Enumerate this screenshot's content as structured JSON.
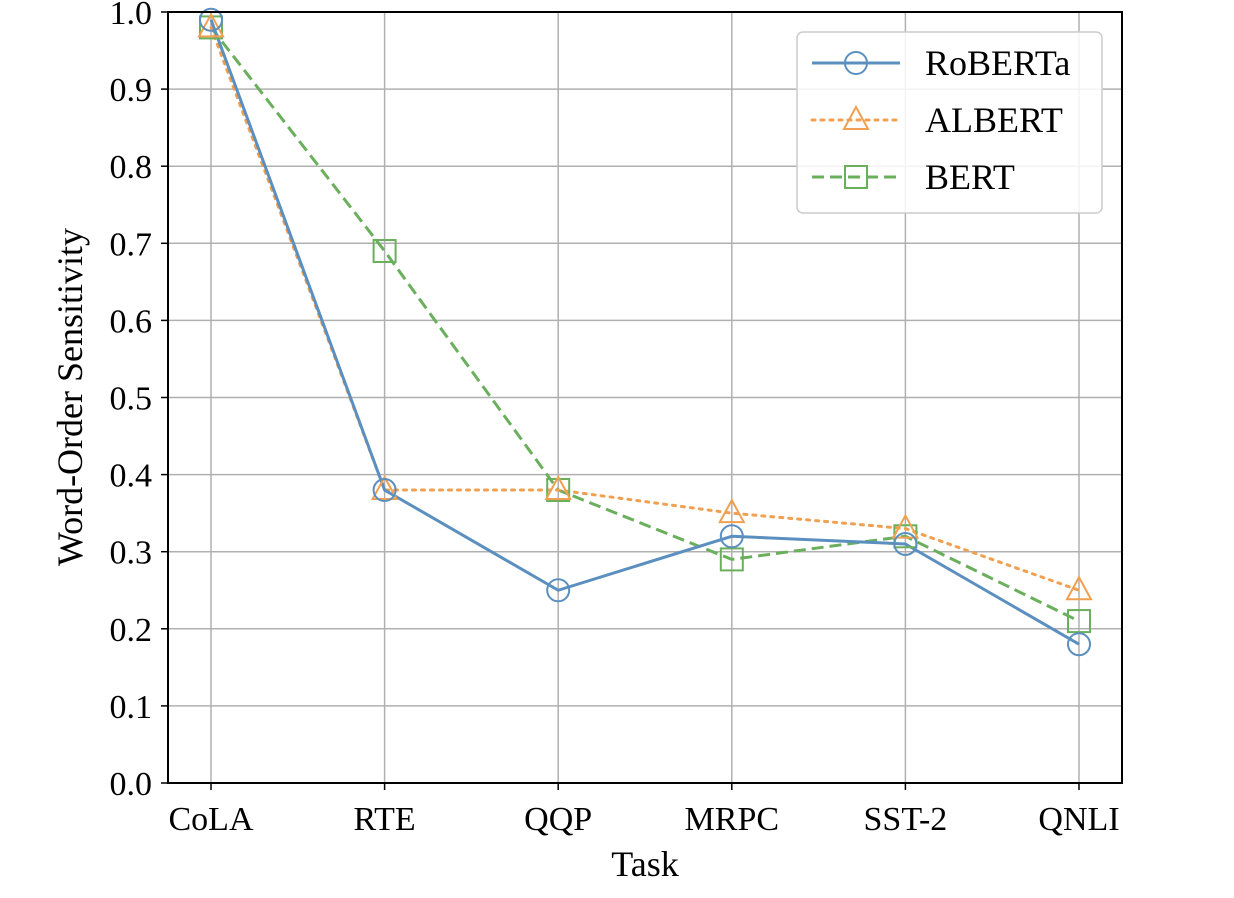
{
  "chart_data": {
    "type": "line",
    "title": "",
    "xlabel": "Task",
    "ylabel": "Word-Order Sensitivity",
    "categories": [
      "CoLA",
      "RTE",
      "QQP",
      "MRPC",
      "SST-2",
      "QNLI"
    ],
    "ylim": [
      0.0,
      1.0
    ],
    "yticks": [
      "0.0",
      "0.1",
      "0.2",
      "0.3",
      "0.4",
      "0.5",
      "0.6",
      "0.7",
      "0.8",
      "0.9",
      "1.0"
    ],
    "grid": true,
    "legend_position": "top-right",
    "series": [
      {
        "name": "RoBERTa",
        "values": [
          0.99,
          0.38,
          0.25,
          0.32,
          0.31,
          0.18
        ],
        "color": "#5b8fbf",
        "marker": "circle",
        "line_style": "solid"
      },
      {
        "name": "ALBERT",
        "values": [
          0.98,
          0.38,
          0.38,
          0.35,
          0.33,
          0.25
        ],
        "color": "#f0a050",
        "marker": "triangle",
        "line_style": "dotted"
      },
      {
        "name": "BERT",
        "values": [
          0.98,
          0.69,
          0.38,
          0.29,
          0.32,
          0.21
        ],
        "color": "#6aaf5c",
        "marker": "square",
        "line_style": "dashed"
      }
    ]
  }
}
